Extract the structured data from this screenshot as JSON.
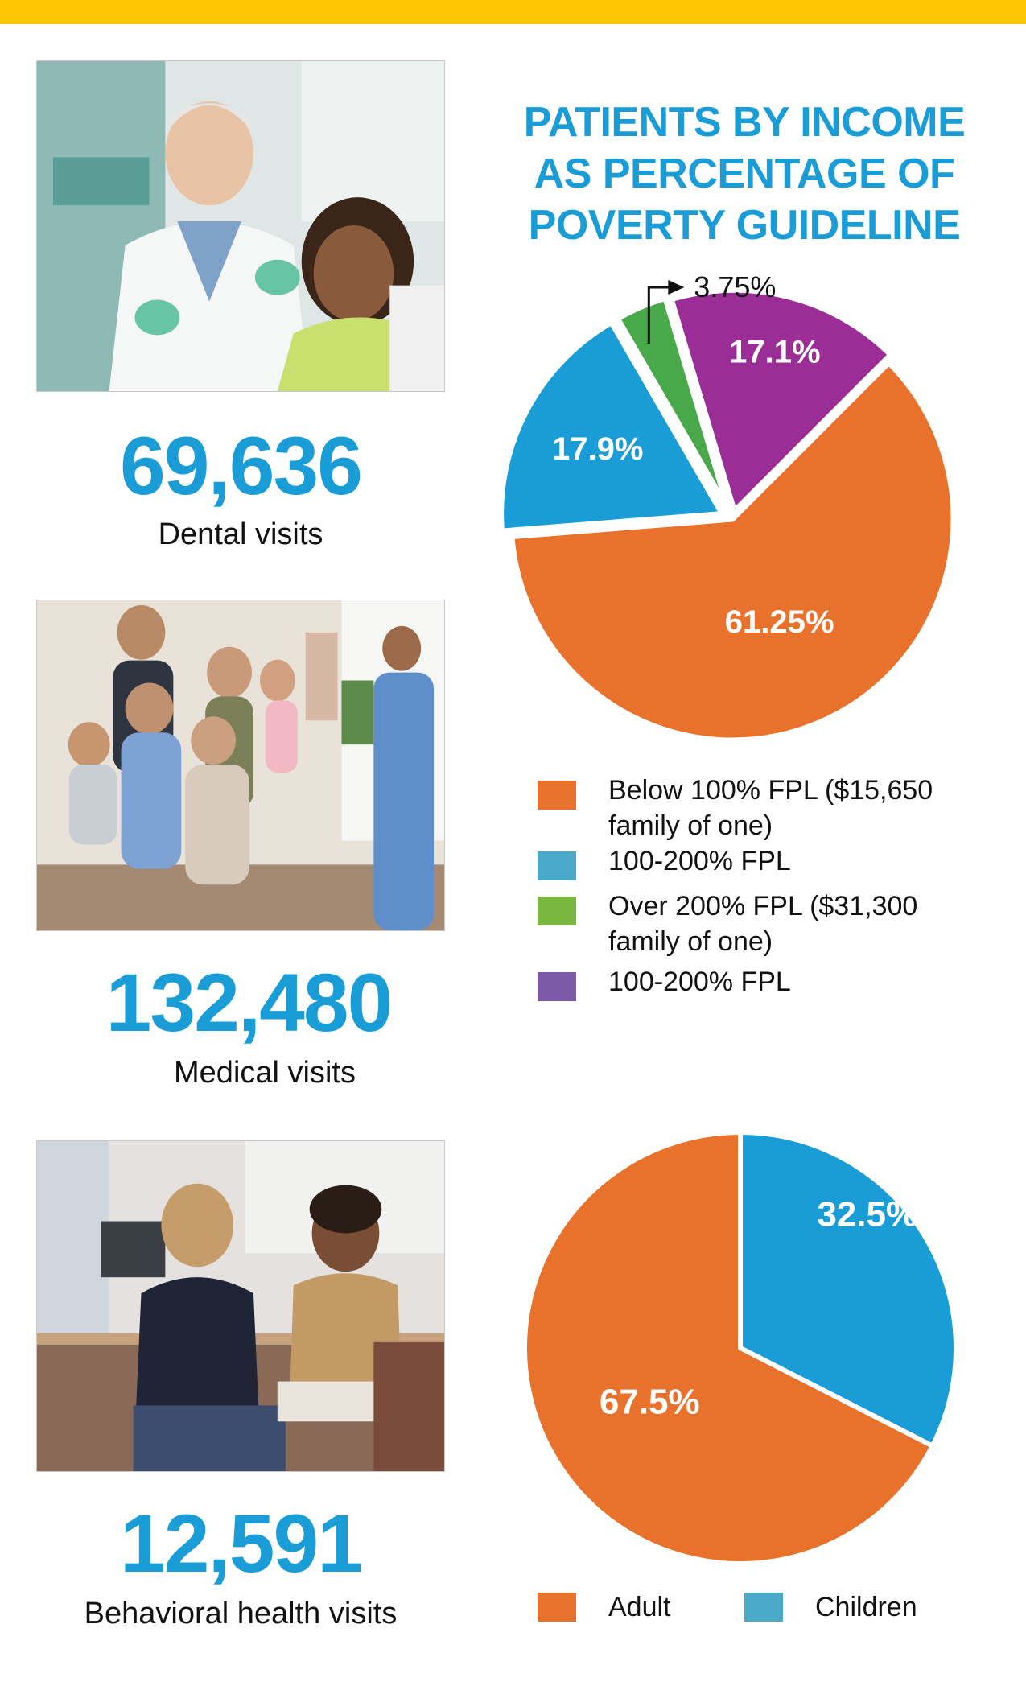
{
  "stats": [
    {
      "number": "69,636",
      "label": "Dental visits",
      "photo_alt": "dentist-with-child-photo"
    },
    {
      "number": "132,480",
      "label": "Medical visits",
      "photo_alt": "family-with-nurse-photo"
    },
    {
      "number": "12,591",
      "label": "Behavioral health visits",
      "photo_alt": "counselor-with-teen-photo"
    }
  ],
  "colors": {
    "top_bar": "#fdc600",
    "accent_blue": "#1a9dd6",
    "orange": "#e8722c",
    "blue": "#1a9dd6",
    "green": "#49a84a",
    "purple": "#9b2d96"
  },
  "chart_data": [
    {
      "type": "pie",
      "title": "PATIENTS BY INCOME AS PERCENTAGE OF POVERTY GUIDELINE",
      "title_lines": [
        "PATIENTS BY INCOME",
        "AS PERCENTAGE OF",
        "POVERTY GUIDELINE"
      ],
      "slices": [
        {
          "label": "Below 100% FPL ($15,650 family of one)",
          "value": 61.25,
          "data_label": "61.25%",
          "color": "#e8722c"
        },
        {
          "label": "100-200% FPL",
          "value": 17.9,
          "data_label": "17.9%",
          "color": "#1a9dd6"
        },
        {
          "label": "Over 200% FPL ($31,300 family of one)",
          "value": 3.75,
          "data_label": "3.75%",
          "color": "#49a84a"
        },
        {
          "label": "100-200% FPL",
          "value": 17.1,
          "data_label": "17.1%",
          "color": "#9b2d96"
        }
      ],
      "legend": [
        {
          "lines": [
            "Below 100% FPL ($15,650",
            "family of one)"
          ],
          "color": "#e8722c"
        },
        {
          "lines": [
            "100-200% FPL"
          ],
          "color": "#4aa9c9"
        },
        {
          "lines": [
            "Over 200% FPL ($31,300",
            "family of one)"
          ],
          "color": "#7ab642"
        },
        {
          "lines": [
            "100-200% FPL"
          ],
          "color": "#7d5aa8"
        }
      ]
    },
    {
      "type": "pie",
      "slices": [
        {
          "label": "Children",
          "value": 32.5,
          "data_label": "32.5%",
          "color": "#1a9dd6"
        },
        {
          "label": "Adult",
          "value": 67.5,
          "data_label": "67.5%",
          "color": "#e8722c"
        }
      ],
      "legend": [
        {
          "label": "Adult",
          "color": "#e8722c"
        },
        {
          "label": "Children",
          "color": "#4aa9c9"
        }
      ]
    }
  ]
}
